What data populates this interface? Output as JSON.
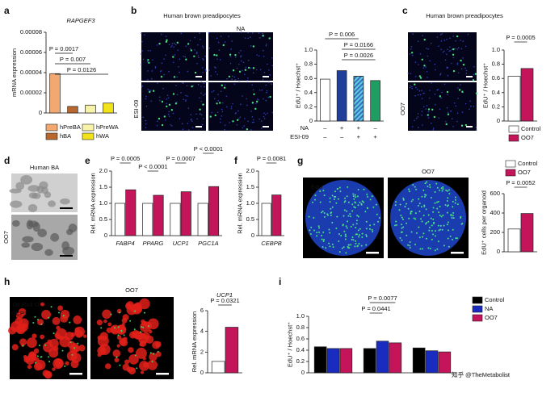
{
  "panels": [
    "a",
    "b",
    "c",
    "d",
    "e",
    "f",
    "g",
    "h",
    "i"
  ],
  "images": {
    "b": {
      "title": "Human brown preadipocytes",
      "column": "NA",
      "row": "ESI-09"
    },
    "c": {
      "title": "Human brown preadipocytes",
      "row": "OO7"
    },
    "d": {
      "title": "Human BA",
      "row": "OO7"
    },
    "g": {
      "stain": "EdU",
      "column": "OO7"
    },
    "h": {
      "stains": [
        "Oil Red O",
        "UCP1"
      ],
      "column": "OO7"
    }
  },
  "chart_data": [
    {
      "type": "bar",
      "title": "RAPGEF3",
      "ylabel": "mRNA expression",
      "ylim": [
        0,
        8e-05
      ],
      "yticks": [
        0,
        2e-05,
        4e-05,
        6e-05,
        8e-05
      ],
      "categories": [
        "hPreBA",
        "hBA",
        "hPreWA",
        "hWA"
      ],
      "series": [
        {
          "colors": [
            "#f2a870",
            "#b8672e",
            "#f7f3a8",
            "#f2e21a"
          ],
          "values": [
            3.9e-05,
            6.5e-06,
            7.8e-06,
            9.8e-06
          ]
        }
      ],
      "annotations": [
        "P = 0.0017",
        "P = 0.007",
        "P = 0.0126"
      ],
      "legend": true
    },
    {
      "type": "bar",
      "ylabel": "EdU⁺ / Hoechst⁺",
      "ylim": [
        0,
        1
      ],
      "yticks": [
        0,
        0.2,
        0.4,
        0.6,
        0.8,
        {
          "value": 1,
          "label": "1.0"
        }
      ],
      "series": [
        {
          "colors": [
            "#ffffff",
            "#1f3f9a",
            "#3a6fc0",
            "#1e9e63"
          ],
          "hatched": [
            false,
            false,
            true,
            false
          ],
          "values": [
            0.59,
            0.71,
            0.63,
            0.57
          ]
        }
      ],
      "conditions": [
        {
          "name": "NA",
          "signs": [
            "–",
            "+",
            "+",
            "–"
          ]
        },
        {
          "name": "ESI-09",
          "signs": [
            "–",
            "–",
            "+",
            "+"
          ]
        }
      ],
      "annotations": [
        "P = 0.006",
        "P = 0.0166",
        "P = 0.0026"
      ]
    },
    {
      "type": "bar",
      "ylabel": "EdU⁺ / Hoechst⁺",
      "ylim": [
        0,
        1
      ],
      "yticks": [
        0,
        0.2,
        0.4,
        0.6,
        0.8,
        {
          "value": 1,
          "label": "1.0"
        }
      ],
      "series": [
        {
          "name": "Control",
          "color": "#ffffff",
          "values": [
            0.63
          ]
        },
        {
          "name": "OO7",
          "color": "#c4145a",
          "values": [
            0.74
          ]
        }
      ],
      "annotations": [
        "P = 0.0005"
      ],
      "legend": true
    },
    {
      "type": "bar",
      "ylabel": "Rel. mRNA expression",
      "ylim": [
        0,
        2
      ],
      "yticks": [
        0,
        0.5,
        {
          "value": 1,
          "label": "1.0"
        },
        1.5,
        {
          "value": 2,
          "label": "2.0"
        }
      ],
      "categories": [
        "FABP4",
        "PPARG",
        "UCP1",
        "PGC1A"
      ],
      "series": [
        {
          "color": "#ffffff",
          "values": [
            1,
            1,
            1,
            1
          ]
        },
        {
          "color": "#c4145a",
          "values": [
            1.42,
            1.25,
            1.36,
            1.52
          ]
        }
      ],
      "annotations": [
        "P = 0.0005",
        "P < 0.0001",
        "P = 0.0007",
        "P < 0.0001"
      ]
    },
    {
      "type": "bar",
      "ylabel": "Rel. mRNA expression",
      "ylim": [
        0,
        2
      ],
      "yticks": [
        0,
        0.5,
        {
          "value": 1,
          "label": "1.0"
        },
        1.5,
        {
          "value": 2,
          "label": "2.0"
        }
      ],
      "categories": [
        "CEBPB"
      ],
      "series": [
        {
          "color": "#ffffff",
          "values": [
            1
          ]
        },
        {
          "color": "#c4145a",
          "values": [
            1.26
          ]
        }
      ],
      "annotations": [
        "P = 0.0081"
      ]
    },
    {
      "type": "bar",
      "ylabel": "EdU⁺ cells per organoid",
      "ylim": [
        0,
        600
      ],
      "yticks": [
        0,
        200,
        400,
        600
      ],
      "series": [
        {
          "name": "Control",
          "color": "#ffffff",
          "values": [
            235
          ]
        },
        {
          "name": "OO7",
          "color": "#c4145a",
          "values": [
            395
          ]
        }
      ],
      "annotations": [
        "P = 0.0052"
      ],
      "legend": true
    },
    {
      "type": "bar",
      "title": "UCP1",
      "ylabel": "Rel. mRNA expression",
      "ylim": [
        0,
        6
      ],
      "yticks": [
        0,
        2,
        4,
        6
      ],
      "series": [
        {
          "color": "#ffffff",
          "values": [
            1.1
          ]
        },
        {
          "color": "#c4145a",
          "values": [
            4.4
          ]
        }
      ],
      "annotations": [
        "P = 0.0321"
      ]
    },
    {
      "type": "bar",
      "ylabel": "EdU⁺ / Hoechst⁺",
      "ylim": [
        0,
        1
      ],
      "yticks": [
        0,
        0.2,
        0.4,
        0.6,
        0.8,
        {
          "value": 1,
          "label": "1.0"
        }
      ],
      "categories": [
        [
          "Rapgef3⁻/⁻ +",
          "LV-ctrl"
        ],
        [
          "Rapgef3⁻/⁻ +",
          "LV-WT EPAC1"
        ],
        [
          "Rapgef3⁻/⁻ +",
          "LV-L300P EPAC1"
        ]
      ],
      "series": [
        {
          "name": "Control",
          "color": "#000000",
          "values": [
            0.46,
            0.43,
            0.44
          ]
        },
        {
          "name": "NA",
          "color": "#1a2cc0",
          "values": [
            0.43,
            0.56,
            0.39
          ]
        },
        {
          "name": "OO7",
          "color": "#c4145a",
          "values": [
            0.43,
            0.53,
            0.37
          ]
        }
      ],
      "annotations": [
        "P = 0.0441",
        "P = 0.0077"
      ],
      "legend": true
    }
  ],
  "watermark": "知乎 @TheMetabolist"
}
